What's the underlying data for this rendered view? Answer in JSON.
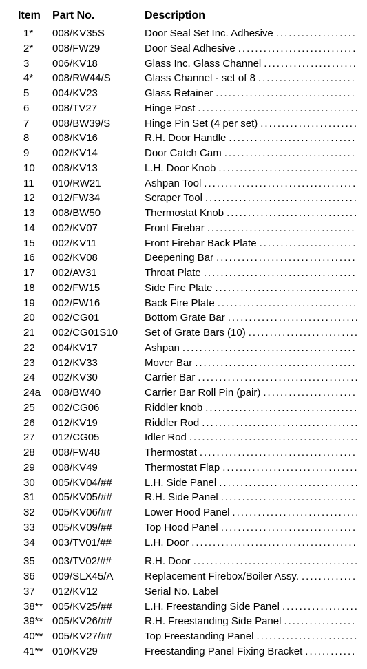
{
  "headers": {
    "item": "Item",
    "part": "Part No.",
    "desc": "Description"
  },
  "rows": [
    {
      "item": "1*",
      "part": "008/KV35S",
      "desc": "Door Seal Set Inc. Adhesive",
      "dots": true
    },
    {
      "item": "2*",
      "part": "008/FW29",
      "desc": "Door Seal Adhesive",
      "dots": true
    },
    {
      "item": "3",
      "part": "006/KV18",
      "desc": "Glass Inc. Glass Channel",
      "dots": true
    },
    {
      "item": "4*",
      "part": "008/RW44/S",
      "desc": "Glass Channel - set of 8",
      "dots": true
    },
    {
      "item": "5",
      "part": "004/KV23",
      "desc": "Glass Retainer",
      "dots": true
    },
    {
      "item": "6",
      "part": "008/TV27",
      "desc": "Hinge Post",
      "dots": true
    },
    {
      "item": "7",
      "part": "008/BW39/S",
      "desc": "Hinge Pin Set (4 per set)",
      "dots": true
    },
    {
      "item": "8",
      "part": "008/KV16",
      "desc": "R.H. Door Handle",
      "dots": true
    },
    {
      "item": "9",
      "part": "002/KV14",
      "desc": "Door Catch Cam",
      "dots": true
    },
    {
      "item": "10",
      "part": "008/KV13",
      "desc": "L.H. Door Knob",
      "dots": true
    },
    {
      "item": "11",
      "part": "010/RW21",
      "desc": "Ashpan Tool",
      "dots": true
    },
    {
      "item": "12",
      "part": "012/FW34",
      "desc": "Scraper Tool",
      "dots": true
    },
    {
      "item": "13",
      "part": "008/BW50",
      "desc": "Thermostat Knob",
      "dots": true
    },
    {
      "item": "14",
      "part": "002/KV07",
      "desc": "Front Firebar",
      "dots": true
    },
    {
      "item": "15",
      "part": "002/KV11",
      "desc": "Front Firebar Back Plate",
      "dots": true
    },
    {
      "item": "16",
      "part": "002/KV08",
      "desc": "Deepening Bar",
      "dots": true
    },
    {
      "item": "17",
      "part": "002/AV31",
      "desc": "Throat Plate",
      "dots": true
    },
    {
      "item": "18",
      "part": "002/FW15",
      "desc": "Side Fire Plate",
      "dots": true
    },
    {
      "item": "19",
      "part": "002/FW16",
      "desc": "Back Fire Plate",
      "dots": true
    },
    {
      "item": "20",
      "part": "002/CG01",
      "desc": "Bottom Grate Bar",
      "dots": true
    },
    {
      "item": "21",
      "part": "002/CG01S10",
      "desc": "Set of Grate Bars (10)",
      "dots": true
    },
    {
      "item": "22",
      "part": "004/KV17",
      "desc": "Ashpan",
      "dots": true
    },
    {
      "item": "23",
      "part": "012/KV33",
      "desc": "Mover Bar",
      "dots": true
    },
    {
      "item": "24",
      "part": "002/KV30",
      "desc": "Carrier Bar",
      "dots": true
    },
    {
      "item": "24a",
      "part": "008/BW40",
      "desc": "Carrier Bar Roll Pin (pair)",
      "dots": true
    },
    {
      "item": "25",
      "part": "002/CG06",
      "desc": "Riddler knob",
      "dots": true
    },
    {
      "item": "26",
      "part": "012/KV19",
      "desc": "Riddler Rod",
      "dots": true
    },
    {
      "item": "27",
      "part": "012/CG05",
      "desc": "Idler Rod",
      "dots": true
    },
    {
      "item": "28",
      "part": "008/FW48",
      "desc": "Thermostat",
      "dots": true
    },
    {
      "item": "29",
      "part": "008/KV49",
      "desc": "Thermostat Flap",
      "dots": true
    },
    {
      "item": "30",
      "part": "005/KV04/##",
      "desc": "L.H. Side Panel",
      "dots": true
    },
    {
      "item": "31",
      "part": "005/KV05/##",
      "desc": "R.H. Side Panel",
      "dots": true
    },
    {
      "item": "32",
      "part": "005/KV06/##",
      "desc": "Lower Hood Panel",
      "dots": true
    },
    {
      "item": "33",
      "part": "005/KV09/##",
      "desc": "Top Hood Panel",
      "dots": true
    },
    {
      "item": "34",
      "part": "003/TV01/##",
      "desc": "L.H. Door",
      "dots": true
    },
    {
      "item": "35",
      "part": "003/TV02/##",
      "desc": "R.H. Door",
      "dots": true,
      "gap": true
    },
    {
      "item": "36",
      "part": "009/SLX45/A",
      "desc": "Replacement Firebox/Boiler Assy.",
      "dots": true
    },
    {
      "item": "37",
      "part": "012/KV12",
      "desc": "Serial No. Label",
      "dots": false
    },
    {
      "item": "38**",
      "part": "005/KV25/##",
      "desc": "L.H. Freestanding Side Panel",
      "dots": true
    },
    {
      "item": "39**",
      "part": "005/KV26/##",
      "desc": "R.H. Freestanding Side Panel",
      "dots": true
    },
    {
      "item": "40**",
      "part": "005/KV27/##",
      "desc": "Top Freestanding Panel",
      "dots": true
    },
    {
      "item": "41**",
      "part": "010/KV29",
      "desc": "Freestanding Panel Fixing Bracket",
      "dots": true
    }
  ]
}
